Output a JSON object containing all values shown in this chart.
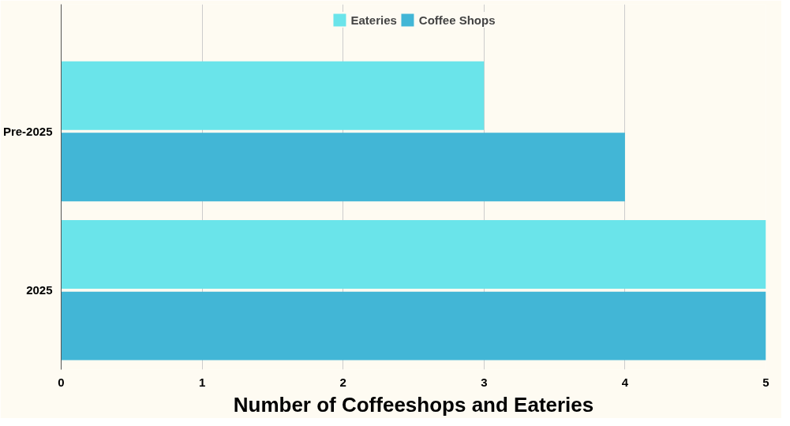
{
  "chart_data": {
    "type": "bar",
    "orientation": "horizontal",
    "categories": [
      "Pre-2025",
      "2025"
    ],
    "series": [
      {
        "name": "Eateries",
        "color": "#6ae4ea",
        "values": [
          3,
          5
        ]
      },
      {
        "name": "Coffee Shops",
        "color": "#42b6d6",
        "values": [
          4,
          5
        ]
      }
    ],
    "xlabel": "Number of Coffeeshops and Eateries",
    "xlim": [
      0,
      5
    ],
    "xticks": [
      0,
      1,
      2,
      3,
      4,
      5
    ],
    "grid": "x",
    "legend": "top"
  }
}
